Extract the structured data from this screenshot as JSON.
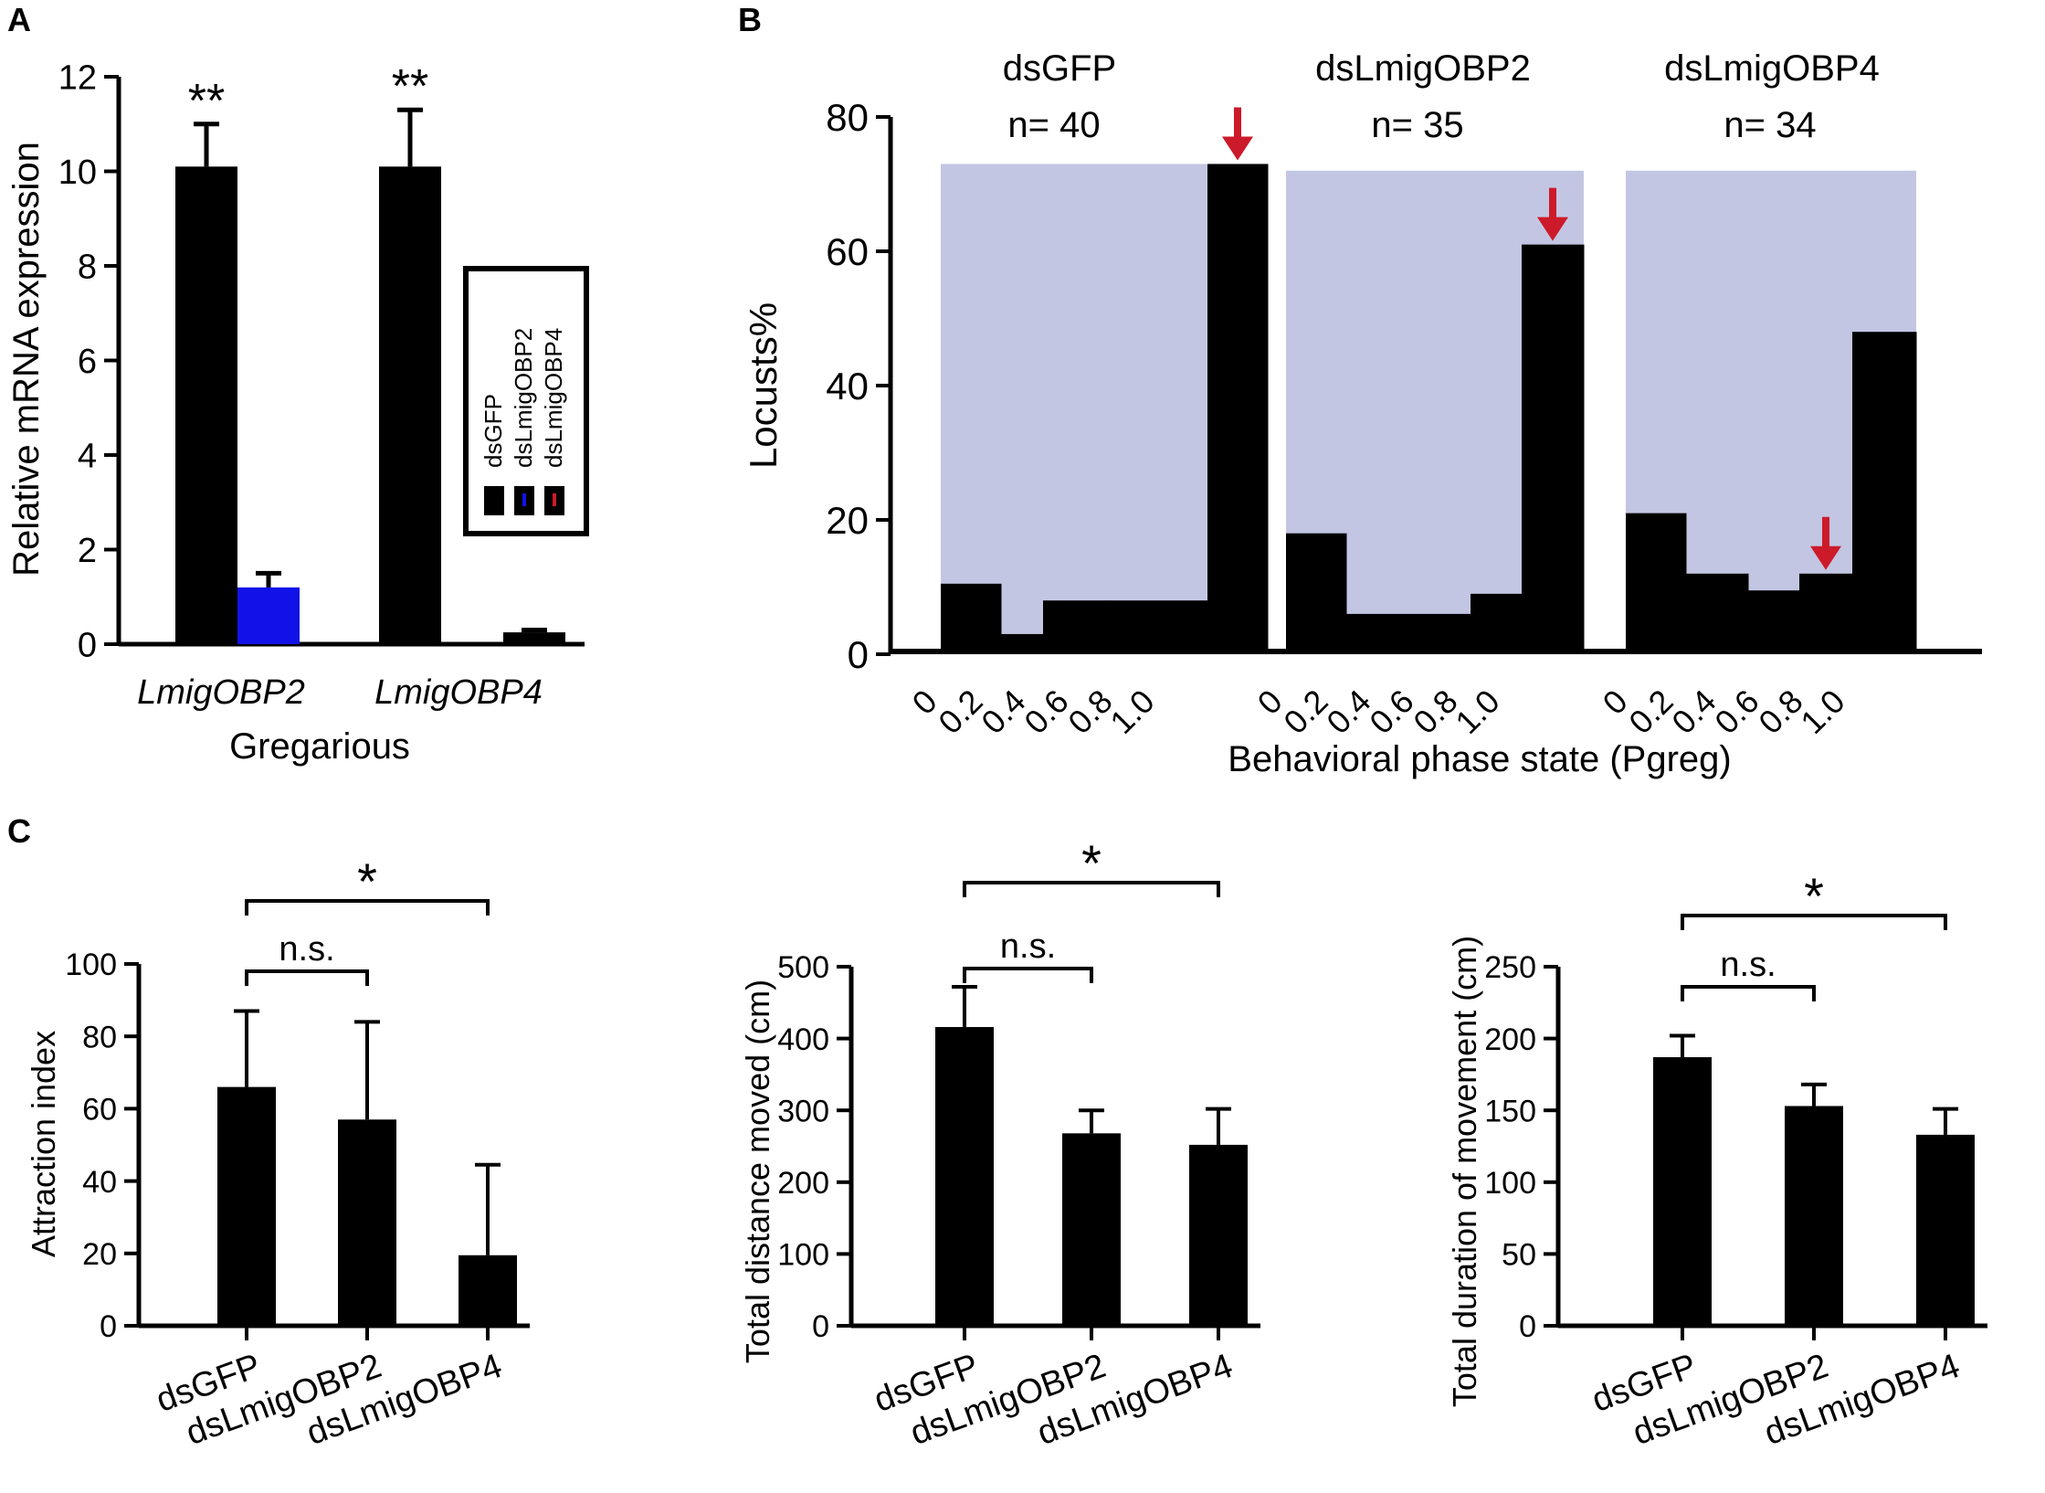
{
  "colors": {
    "black": "#000000",
    "blue": "#1212e8",
    "red": "#cc1a2a",
    "shade": "#c3c6e2"
  },
  "chart_data": [
    {
      "panel": "A",
      "type": "bar",
      "ylabel": "Relative mRNA expression",
      "xlabel": "Gregarious",
      "ylim": [
        0,
        12
      ],
      "yticks": [
        "0",
        "2",
        "4",
        "6",
        "8",
        "10",
        "12"
      ],
      "categories": [
        "LmigOBP2",
        "LmigOBP4"
      ],
      "series": [
        {
          "name": "dsGFP",
          "values": [
            10.1,
            10.1
          ],
          "errors": [
            0.9,
            1.2
          ],
          "color": "#000000"
        },
        {
          "name": "dsLmigOBP2",
          "values": [
            1.2,
            0
          ],
          "errors": [
            0.3,
            0
          ],
          "color": "#1212e8"
        },
        {
          "name": "dsLmigOBP4",
          "values": [
            0,
            0.25
          ],
          "errors": [
            0,
            0.05
          ],
          "color": "#cc1a2a"
        }
      ],
      "significance": [
        "**",
        "**"
      ],
      "legend": [
        "dsGFP",
        "dsLmigOBP2",
        "dsLmigOBP4"
      ],
      "legend_position": "right"
    },
    {
      "panel": "B",
      "type": "bar",
      "ylabel": "Locusts%",
      "xlabel": "Behavioral phase state (Pgreg)",
      "ylim": [
        0,
        80
      ],
      "yticks": [
        "0",
        "20",
        "40",
        "60",
        "80"
      ],
      "xticks": [
        "0",
        "0.2",
        "0.4",
        "0.6",
        "0.8",
        "1.0"
      ],
      "groups": [
        {
          "name": "dsGFP",
          "n_label": "n= 40",
          "values": [
            10.5,
            3,
            8,
            8,
            73
          ],
          "arrow_bin": 4
        },
        {
          "name": "dsLmigOBP2",
          "n_label": "n= 35",
          "values": [
            18,
            6,
            6,
            9,
            61
          ],
          "arrow_bin": 4
        },
        {
          "name": "dsLmigOBP4",
          "n_label": "n= 34",
          "values": [
            21,
            12,
            9.5,
            12,
            48
          ],
          "arrow_bin": 3
        }
      ],
      "shade_tops": [
        73,
        72,
        72
      ]
    },
    {
      "panel": "C",
      "type": "bar",
      "ylabel": "Attraction index",
      "ylim": [
        0,
        100
      ],
      "yticks": [
        "0",
        "20",
        "40",
        "60",
        "80",
        "100"
      ],
      "categories": [
        "dsGFP",
        "dsLmigOBP2",
        "dsLmigOBP4"
      ],
      "values": [
        66,
        57,
        19.5
      ],
      "errors": [
        21,
        27,
        25
      ],
      "brackets": [
        {
          "from": 0,
          "to": 1,
          "label": "n.s."
        },
        {
          "from": 0,
          "to": 2,
          "label": "*"
        }
      ]
    },
    {
      "panel": "C",
      "type": "bar",
      "ylabel": "Total distance moved (cm)",
      "ylim": [
        0,
        500
      ],
      "yticks": [
        "0",
        "100",
        "200",
        "300",
        "400",
        "500"
      ],
      "categories": [
        "dsGFP",
        "dsLmigOBP2",
        "dsLmigOBP4"
      ],
      "values": [
        416,
        268,
        252
      ],
      "errors": [
        56,
        32,
        50
      ],
      "brackets": [
        {
          "from": 0,
          "to": 1,
          "label": "n.s."
        },
        {
          "from": 0,
          "to": 2,
          "label": "*"
        }
      ]
    },
    {
      "panel": "C",
      "type": "bar",
      "ylabel": "Total duration of movement (cm)",
      "ylim": [
        0,
        250
      ],
      "yticks": [
        "0",
        "50",
        "100",
        "150",
        "200",
        "250"
      ],
      "categories": [
        "dsGFP",
        "dsLmigOBP2",
        "dsLmigOBP4"
      ],
      "values": [
        187,
        153,
        133
      ],
      "errors": [
        15,
        15,
        18
      ],
      "brackets": [
        {
          "from": 0,
          "to": 1,
          "label": "n.s."
        },
        {
          "from": 0,
          "to": 2,
          "label": "*"
        }
      ]
    }
  ]
}
